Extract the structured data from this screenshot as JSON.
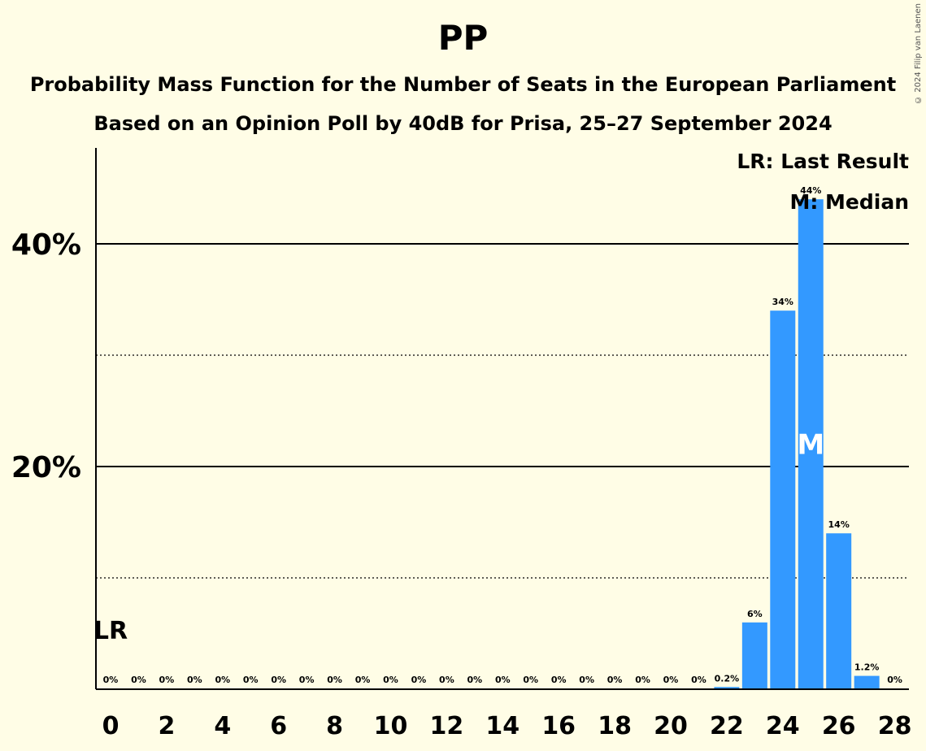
{
  "title": "PP",
  "subtitle": "Probability Mass Function for the Number of Seats in the European Parliament",
  "subtitle2": "Based on an Opinion Poll by 40dB for Prisa, 25–27 September 2024",
  "copyright": "© 2024 Filip van Laenen",
  "legend": {
    "last_result": "LR: Last Result",
    "median": "M: Median"
  },
  "colors": {
    "bar": "#3399FF",
    "background": "#FFFDE6"
  },
  "chart_data": {
    "type": "bar",
    "x": [
      0,
      1,
      2,
      3,
      4,
      5,
      6,
      7,
      8,
      9,
      10,
      11,
      12,
      13,
      14,
      15,
      16,
      17,
      18,
      19,
      20,
      21,
      22,
      23,
      24,
      25,
      26,
      27,
      28
    ],
    "values": [
      0,
      0,
      0,
      0,
      0,
      0,
      0,
      0,
      0,
      0,
      0,
      0,
      0,
      0,
      0,
      0,
      0,
      0,
      0,
      0,
      0,
      0,
      0.2,
      6,
      34,
      44,
      14,
      1.2,
      0
    ],
    "data_labels": [
      "0%",
      "0%",
      "0%",
      "0%",
      "0%",
      "0%",
      "0%",
      "0%",
      "0%",
      "0%",
      "0%",
      "0%",
      "0%",
      "0%",
      "0%",
      "0%",
      "0%",
      "0%",
      "0%",
      "0%",
      "0%",
      "0%",
      "0.2%",
      "6%",
      "34%",
      "44%",
      "14%",
      "1.2%",
      "0%"
    ],
    "xticks": [
      "0",
      "2",
      "4",
      "6",
      "8",
      "10",
      "12",
      "14",
      "16",
      "18",
      "20",
      "22",
      "24",
      "26",
      "28"
    ],
    "yticks": [
      "20%",
      "40%"
    ],
    "ylim": [
      0,
      48.4
    ],
    "last_result_seat": 0,
    "last_result_label": "LR",
    "median_seat": 25,
    "median_label": "M",
    "grid": "solid lines at 20% and 40%, dotted lines at 10% and 30%"
  }
}
